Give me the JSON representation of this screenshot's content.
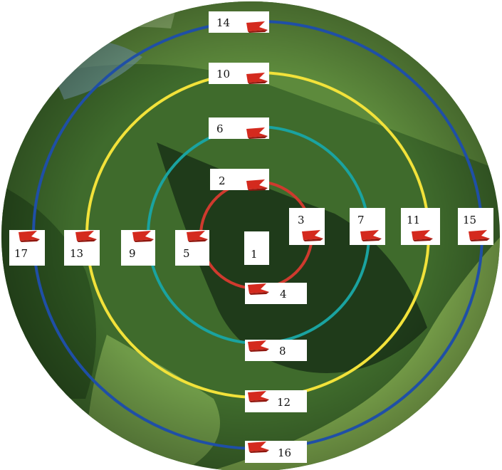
{
  "photo": {
    "subject": "hillside-forest-fisheye-photo",
    "colors": {
      "canopy_dark": "#1f3b1a",
      "canopy_mid": "#3f6b2c",
      "canopy_light": "#6f9a48",
      "grass": "#7faa4e",
      "sky_haze": "#c7d8c8"
    }
  },
  "rings": [
    {
      "ring": "inner",
      "color": "#cf3a2e"
    },
    {
      "ring": "second",
      "color": "#1aa3a0"
    },
    {
      "ring": "third",
      "color": "#f2e23a"
    },
    {
      "ring": "outer",
      "color": "#1f4fa6"
    }
  ],
  "center_dot_color": "#111111",
  "marker": {
    "icon": "red-flag-marker-icon",
    "color": "#d42a1e"
  },
  "labels": {
    "l1": "1",
    "l2": "2",
    "l3": "3",
    "l4": "4",
    "l5": "5",
    "l6": "6",
    "l7": "7",
    "l8": "8",
    "l9": "9",
    "l10": "10",
    "l11": "11",
    "l12": "12",
    "l13": "13",
    "l14": "14",
    "l15": "15",
    "l16": "16",
    "l17": "17"
  }
}
